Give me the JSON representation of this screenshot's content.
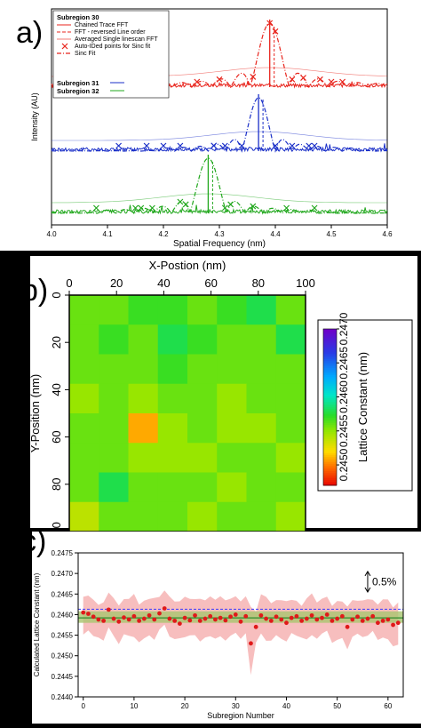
{
  "chart_data": [
    {
      "type": "line",
      "panel_label": "a)",
      "xlabel": "Spatial Frequency (nm)",
      "ylabel": "Intensity (AU)",
      "xlim": [
        4.0,
        4.6
      ],
      "xticks": [
        "4.0",
        "4.1",
        "4.2",
        "4.3",
        "4.4",
        "4.5",
        "4.6"
      ],
      "legend": {
        "placement": "top-left",
        "title": "Subregion 30",
        "entries": [
          "Chained Trace FFT",
          "FFT - reversed Line order",
          "Averaged Single linescan FFT",
          "Auto-IDed points for Sinc fit",
          "Sinc Fit"
        ],
        "extra": [
          "Subregion 31",
          "Subregion 32"
        ]
      },
      "series": [
        {
          "name": "Subregion 30",
          "color": "#e8241c",
          "sinc_center": 4.39,
          "sinc_width": 0.035,
          "baseline": 0.09,
          "peak": 1.0,
          "markers_x": [
            4.17,
            4.26,
            4.3,
            4.36,
            4.39,
            4.4,
            4.43,
            4.45,
            4.48,
            4.5,
            4.52
          ]
        },
        {
          "name": "Subregion 31",
          "color": "#1a2fc8",
          "sinc_center": 4.37,
          "sinc_width": 0.03,
          "baseline": 0.08,
          "peak": 0.75,
          "markers_x": [
            4.12,
            4.17,
            4.2,
            4.23,
            4.29,
            4.31,
            4.34,
            4.4,
            4.43,
            4.46,
            4.47
          ]
        },
        {
          "name": "Subregion 32",
          "color": "#22a81e",
          "sinc_center": 4.28,
          "sinc_width": 0.033,
          "baseline": 0.08,
          "peak": 0.83,
          "markers_x": [
            4.08,
            4.15,
            4.16,
            4.18,
            4.23,
            4.24,
            4.31,
            4.32,
            4.36,
            4.42,
            4.47
          ]
        }
      ]
    },
    {
      "type": "heatmap",
      "panel_label": "b)",
      "xlabel": "X-Postion (nm)",
      "ylabel": "Y-Position (nm)",
      "xlim": [
        0,
        100
      ],
      "ylim": [
        0,
        100
      ],
      "xticks": [
        "0",
        "20",
        "40",
        "60",
        "80",
        "100"
      ],
      "yticks": [
        "0",
        "20",
        "40",
        "60",
        "80",
        "100"
      ],
      "colorbar": {
        "label": "Lattice Constant (nm)",
        "range": [
          0.2447,
          0.247
        ],
        "ticks": [
          "0.2450",
          "0.2455",
          "0.2460",
          "0.2465",
          "0.2470"
        ]
      },
      "cell_size": 12.5,
      "values": [
        [
          0.2456,
          0.2456,
          0.2457,
          0.2457,
          0.2456,
          0.2457,
          0.2458,
          0.2456
        ],
        [
          0.2456,
          0.2457,
          0.2456,
          0.2458,
          0.2457,
          0.2456,
          0.2456,
          0.2458
        ],
        [
          0.2456,
          0.2456,
          0.2456,
          0.2457,
          0.2456,
          0.2456,
          0.2456,
          0.2456
        ],
        [
          0.2455,
          0.2456,
          0.2455,
          0.2456,
          0.2456,
          0.2455,
          0.2456,
          0.2456
        ],
        [
          0.2456,
          0.2456,
          0.2451,
          0.2455,
          0.2456,
          0.2455,
          0.2455,
          0.2456
        ],
        [
          0.2456,
          0.2456,
          0.2455,
          0.2455,
          0.2455,
          0.2456,
          0.2456,
          0.2455
        ],
        [
          0.2456,
          0.2458,
          0.2456,
          0.2456,
          0.2456,
          0.2455,
          0.2456,
          0.2456
        ],
        [
          0.2454,
          0.2456,
          0.2456,
          0.2456,
          0.2455,
          0.2456,
          0.2456,
          0.2455
        ]
      ]
    },
    {
      "type": "scatter",
      "panel_label": "c)",
      "xlabel": "Subregion Number",
      "ylabel": "Calculated Lattice Constant (nm)",
      "xlim": [
        -1,
        63
      ],
      "ylim": [
        0.244,
        0.2475
      ],
      "xticks": [
        "0",
        "10",
        "20",
        "30",
        "40",
        "50",
        "60"
      ],
      "yticks": [
        "0.2440",
        "0.2445",
        "0.2450",
        "0.2455",
        "0.2460",
        "0.2465",
        "0.2470",
        "0.2475"
      ],
      "annotation": "0.5%",
      "mean": 0.24592,
      "band": [
        0.2458,
        0.24608
      ],
      "dashed_line": 0.24613,
      "series": [
        {
          "name": "",
          "color": "#e01919",
          "values": [
            0.24605,
            0.24602,
            0.24595,
            0.24588,
            0.24585,
            0.24612,
            0.2459,
            0.24583,
            0.24593,
            0.24588,
            0.24596,
            0.24585,
            0.2459,
            0.24598,
            0.24588,
            0.24603,
            0.24615,
            0.2459,
            0.24585,
            0.24578,
            0.24592,
            0.24586,
            0.24598,
            0.24585,
            0.2459,
            0.24596,
            0.24588,
            0.24592,
            0.24586,
            0.24595,
            0.246,
            0.24583,
            0.24596,
            0.2453,
            0.2457,
            0.24598,
            0.2459,
            0.24585,
            0.24595,
            0.24588,
            0.2458,
            0.24592,
            0.24596,
            0.24585,
            0.2459,
            0.24598,
            0.24588,
            0.24592,
            0.246,
            0.24585,
            0.2459,
            0.24596,
            0.2457,
            0.24588,
            0.24595,
            0.24585,
            0.2459,
            0.24596,
            0.2458,
            0.24585,
            0.24588,
            0.24575,
            0.2458
          ]
        }
      ]
    }
  ]
}
